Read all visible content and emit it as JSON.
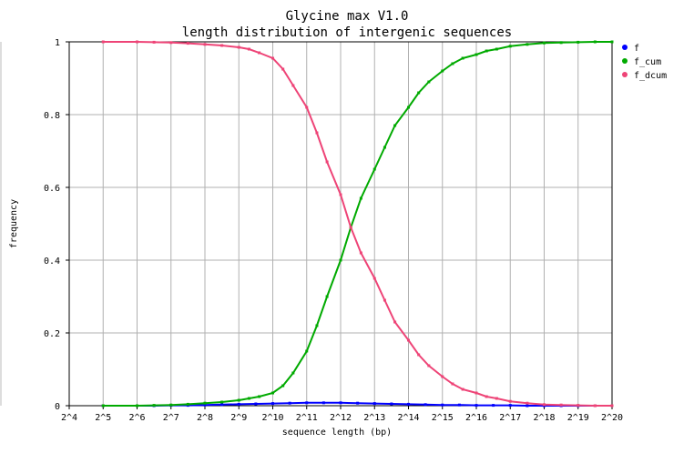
{
  "chart_data": {
    "type": "line",
    "title": [
      "Glycine max V1.0",
      "length distribution of intergenic sequences"
    ],
    "xlabel": "sequence length (bp)",
    "ylabel": "frequency",
    "x_scale": "log2",
    "xlim": [
      4,
      20
    ],
    "ylim": [
      0,
      1
    ],
    "x_tick_labels": [
      "2^4",
      "2^5",
      "2^6",
      "2^7",
      "2^8",
      "2^9",
      "2^10",
      "2^11",
      "2^12",
      "2^13",
      "2^14",
      "2^15",
      "2^16",
      "2^17",
      "2^18",
      "2^19",
      "2^20"
    ],
    "y_ticks": [
      0,
      0.2,
      0.4,
      0.6,
      0.8,
      1
    ],
    "y_tick_labels": [
      "0",
      "0.2",
      "0.4",
      "0.6",
      "0.8",
      "1"
    ],
    "grid": true,
    "legend_position": "right",
    "series": [
      {
        "name": "f",
        "color": "#0000ff",
        "x": [
          5,
          6,
          6.5,
          7,
          7.5,
          8,
          8.5,
          9,
          9.5,
          10,
          10.5,
          11,
          11.5,
          12,
          12.5,
          13,
          13.5,
          14,
          14.5,
          15,
          15.5,
          16,
          16.5,
          17,
          17.5,
          18,
          18.5,
          19,
          19.5,
          20
        ],
        "y": [
          0,
          0,
          0,
          0.001,
          0.001,
          0.002,
          0.003,
          0.004,
          0.005,
          0.006,
          0.007,
          0.008,
          0.008,
          0.008,
          0.007,
          0.006,
          0.005,
          0.004,
          0.003,
          0.002,
          0.002,
          0.001,
          0.001,
          0.001,
          0,
          0,
          0,
          0,
          0,
          0
        ]
      },
      {
        "name": "f_cum",
        "color": "#00aa00",
        "x": [
          5,
          6,
          6.5,
          7,
          7.5,
          8,
          8.5,
          9,
          9.3,
          9.6,
          10,
          10.3,
          10.6,
          11,
          11.3,
          11.6,
          12,
          12.3,
          12.6,
          13,
          13.3,
          13.6,
          14,
          14.3,
          14.6,
          15,
          15.3,
          15.6,
          16,
          16.3,
          16.6,
          17,
          17.5,
          18,
          18.5,
          19,
          19.5,
          20
        ],
        "y": [
          0,
          0,
          0.001,
          0.002,
          0.004,
          0.007,
          0.01,
          0.015,
          0.02,
          0.025,
          0.035,
          0.055,
          0.09,
          0.15,
          0.22,
          0.3,
          0.4,
          0.49,
          0.57,
          0.65,
          0.71,
          0.77,
          0.82,
          0.86,
          0.89,
          0.92,
          0.94,
          0.955,
          0.965,
          0.975,
          0.98,
          0.988,
          0.993,
          0.997,
          0.998,
          0.999,
          1,
          1
        ]
      },
      {
        "name": "f_dcum",
        "color": "#ee4477",
        "x": [
          5,
          6,
          6.5,
          7,
          7.5,
          8,
          8.5,
          9,
          9.3,
          9.6,
          10,
          10.3,
          10.6,
          11,
          11.3,
          11.6,
          12,
          12.3,
          12.6,
          13,
          13.3,
          13.6,
          14,
          14.3,
          14.6,
          15,
          15.3,
          15.6,
          16,
          16.3,
          16.6,
          17,
          17.5,
          18,
          18.5,
          19,
          19.5,
          20
        ],
        "y": [
          1,
          1,
          0.999,
          0.998,
          0.996,
          0.993,
          0.99,
          0.985,
          0.98,
          0.97,
          0.955,
          0.925,
          0.88,
          0.82,
          0.75,
          0.67,
          0.58,
          0.49,
          0.42,
          0.35,
          0.29,
          0.23,
          0.18,
          0.14,
          0.11,
          0.08,
          0.06,
          0.045,
          0.035,
          0.025,
          0.02,
          0.012,
          0.007,
          0.003,
          0.002,
          0.001,
          0,
          0
        ]
      }
    ]
  }
}
